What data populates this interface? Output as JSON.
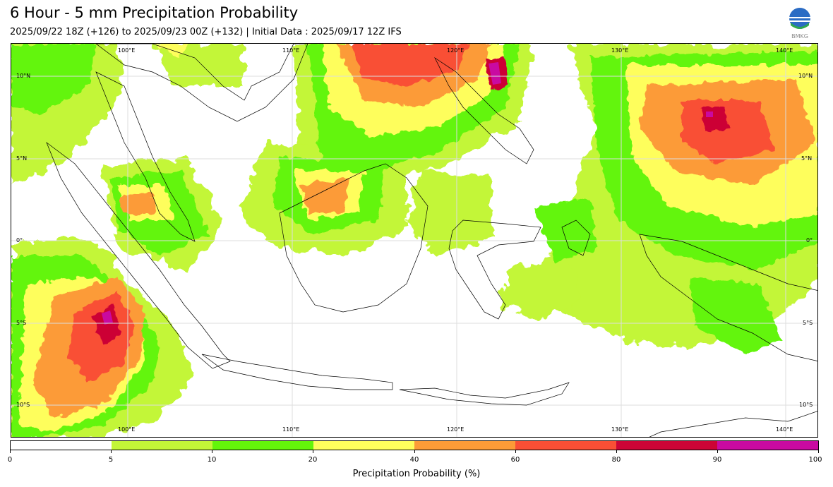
{
  "header": {
    "title": "6 Hour - 5 mm Precipitation Probability",
    "subtitle": "2025/09/22 18Z (+126) to 2025/09/23 00Z (+132) | Initial Data : 2025/09/17 12Z IFS",
    "logo_text": "BMKG"
  },
  "map": {
    "lon_labels_top": [
      "100°E",
      "110°E",
      "120°E",
      "130°E",
      "140°E"
    ],
    "lon_labels_bottom": [
      "100°E",
      "110°E",
      "120°E",
      "130°E",
      "140°E"
    ],
    "lat_labels_left": [
      "10°N",
      "5°N",
      "0°",
      "5°S",
      "10°S"
    ],
    "lat_labels_right": [
      "10°N",
      "5°N",
      "0°",
      "5°S",
      "10°S"
    ]
  },
  "colorbar": {
    "title": "Precipitation Probability (%)",
    "ticks": [
      "0",
      "5",
      "10",
      "20",
      "40",
      "60",
      "80",
      "90",
      "100"
    ],
    "colors": [
      "#ffffff",
      "#c3f637",
      "#64f50a",
      "#fefe5c",
      "#fc9b37",
      "#f94f35",
      "#cc0436",
      "#c90aa1"
    ]
  }
}
